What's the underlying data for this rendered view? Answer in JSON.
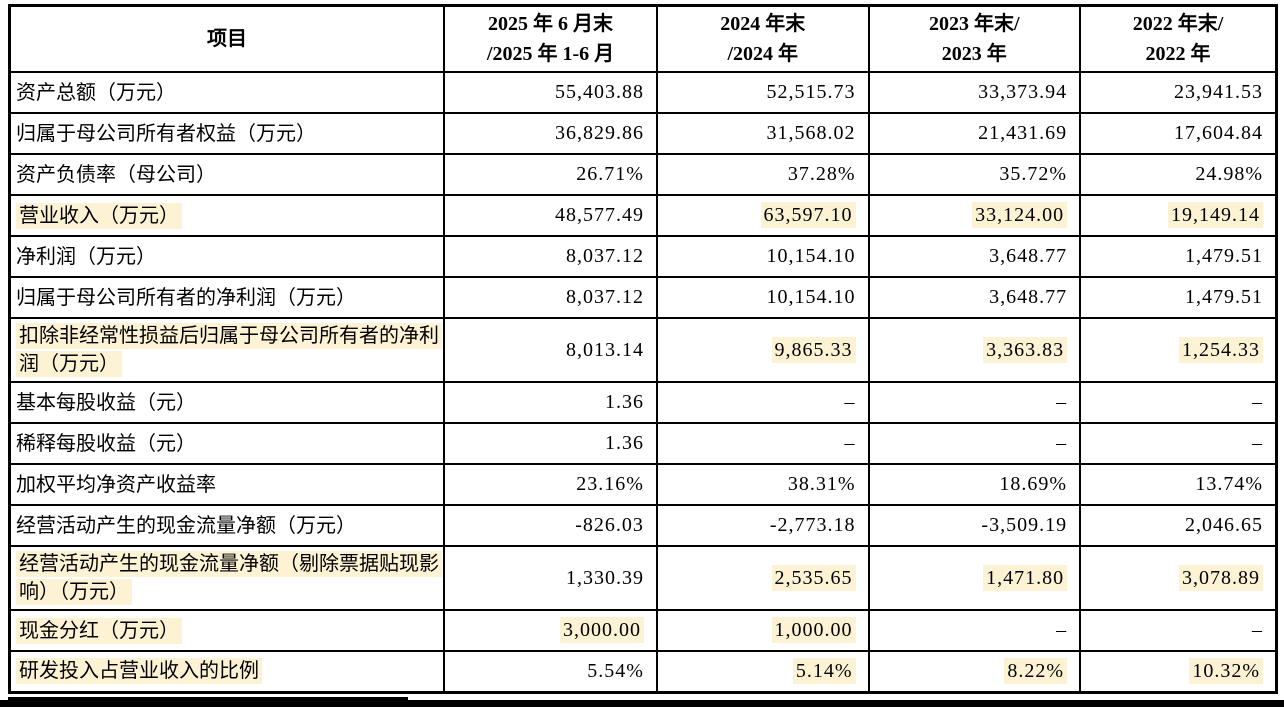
{
  "styles": {
    "highlight_color": "#fdf3d4",
    "border_color": "#000000"
  },
  "table": {
    "type": "table",
    "columns": [
      "项目",
      "2025 年 6 月末\n/2025 年 1-6 月",
      "2024 年末\n/2024 年",
      "2023 年末/\n2023 年",
      "2022 年末/\n2022 年"
    ],
    "rows": [
      {
        "label": "资产总额（万元）",
        "label_highlight": false,
        "values": [
          "55,403.88",
          "52,515.73",
          "33,373.94",
          "23,941.53"
        ],
        "value_highlights": [
          false,
          false,
          false,
          false
        ]
      },
      {
        "label": "归属于母公司所有者权益（万元）",
        "label_highlight": false,
        "values": [
          "36,829.86",
          "31,568.02",
          "21,431.69",
          "17,604.84"
        ],
        "value_highlights": [
          false,
          false,
          false,
          false
        ]
      },
      {
        "label": "资产负债率（母公司）",
        "label_highlight": false,
        "values": [
          "26.71%",
          "37.28%",
          "35.72%",
          "24.98%"
        ],
        "value_highlights": [
          false,
          false,
          false,
          false
        ]
      },
      {
        "label": "营业收入（万元）",
        "label_highlight": true,
        "values": [
          "48,577.49",
          "63,597.10",
          "33,124.00",
          "19,149.14"
        ],
        "value_highlights": [
          false,
          true,
          true,
          true
        ]
      },
      {
        "label": "净利润（万元）",
        "label_highlight": false,
        "values": [
          "8,037.12",
          "10,154.10",
          "3,648.77",
          "1,479.51"
        ],
        "value_highlights": [
          false,
          false,
          false,
          false
        ]
      },
      {
        "label": "归属于母公司所有者的净利润（万元）",
        "label_highlight": false,
        "values": [
          "8,037.12",
          "10,154.10",
          "3,648.77",
          "1,479.51"
        ],
        "value_highlights": [
          false,
          false,
          false,
          false
        ]
      },
      {
        "label": "扣除非经常性损益后归属于母公司所有者的净利润（万元）",
        "label_highlight": true,
        "values": [
          "8,013.14",
          "9,865.33",
          "3,363.83",
          "1,254.33"
        ],
        "value_highlights": [
          false,
          true,
          true,
          true
        ]
      },
      {
        "label": "基本每股收益（元）",
        "label_highlight": false,
        "values": [
          "1.36",
          "–",
          "–",
          "–"
        ],
        "value_highlights": [
          false,
          false,
          false,
          false
        ]
      },
      {
        "label": "稀释每股收益（元）",
        "label_highlight": false,
        "values": [
          "1.36",
          "–",
          "–",
          "–"
        ],
        "value_highlights": [
          false,
          false,
          false,
          false
        ]
      },
      {
        "label": "加权平均净资产收益率",
        "label_highlight": false,
        "values": [
          "23.16%",
          "38.31%",
          "18.69%",
          "13.74%"
        ],
        "value_highlights": [
          false,
          false,
          false,
          false
        ]
      },
      {
        "label": "经营活动产生的现金流量净额（万元）",
        "label_highlight": false,
        "values": [
          "-826.03",
          "-2,773.18",
          "-3,509.19",
          "2,046.65"
        ],
        "value_highlights": [
          false,
          false,
          false,
          false
        ]
      },
      {
        "label": "经营活动产生的现金流量净额（剔除票据贴现影响）（万元）",
        "label_highlight": true,
        "values": [
          "1,330.39",
          "2,535.65",
          "1,471.80",
          "3,078.89"
        ],
        "value_highlights": [
          false,
          true,
          true,
          true
        ]
      },
      {
        "label": "现金分红（万元）",
        "label_highlight": true,
        "values": [
          "3,000.00",
          "1,000.00",
          "–",
          "–"
        ],
        "value_highlights": [
          true,
          true,
          false,
          false
        ]
      },
      {
        "label": "研发投入占营业收入的比例",
        "label_highlight": true,
        "values": [
          "5.54%",
          "5.14%",
          "8.22%",
          "10.32%"
        ],
        "value_highlights": [
          false,
          true,
          true,
          true
        ]
      }
    ]
  }
}
